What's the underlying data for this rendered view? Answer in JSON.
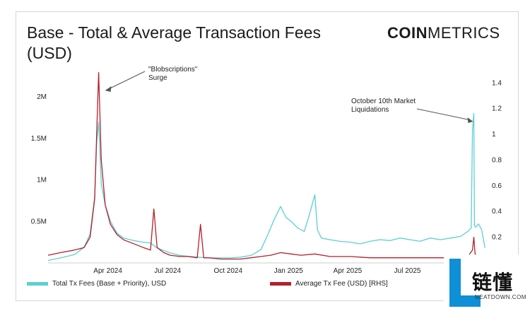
{
  "header": {
    "title": "Base - Total & Average Transaction Fees (USD)",
    "logo_bold": "COIN",
    "logo_light": "METRICS"
  },
  "watermark": {
    "cn_text": "链懂",
    "site": "NEATDOWN.COM"
  },
  "colors": {
    "total_fees": "#5ccfd2",
    "avg_fee": "#b3202c"
  },
  "chart_data": {
    "type": "line",
    "title": "Base - Total & Average Transaction Fees (USD)",
    "x_ticks": [
      "Apr 2024",
      "Jul 2024",
      "Oct 2024",
      "Jan 2025",
      "Apr 2025",
      "Jul 2025"
    ],
    "x_tick_dates": [
      "2024-04-01",
      "2024-07-01",
      "2024-10-01",
      "2025-01-01",
      "2025-04-01",
      "2025-07-01"
    ],
    "x_range": [
      "2024-01-01",
      "2025-10-31"
    ],
    "y_left": {
      "ticks": [
        "0.5M",
        "1M",
        "1.5M",
        "2M"
      ],
      "tick_values": [
        500000,
        1000000,
        1500000,
        2000000
      ],
      "range": [
        0,
        2400000
      ]
    },
    "y_right": {
      "ticks": [
        "0.2",
        "0.4",
        "0.6",
        "0.8",
        "1",
        "1.2",
        "1.4"
      ],
      "tick_values": [
        0.2,
        0.4,
        0.6,
        0.8,
        1.0,
        1.2,
        1.4
      ],
      "range": [
        0,
        1.55
      ]
    },
    "grid": false,
    "legend_position": "bottom",
    "series": [
      {
        "name": "Total Tx Fees (Base + Priority), USD",
        "axis": "left",
        "x": [
          "2024-01-01",
          "2024-01-20",
          "2024-02-10",
          "2024-02-25",
          "2024-03-05",
          "2024-03-12",
          "2024-03-15",
          "2024-03-18",
          "2024-03-22",
          "2024-03-28",
          "2024-04-05",
          "2024-04-15",
          "2024-04-25",
          "2024-05-10",
          "2024-05-25",
          "2024-06-05",
          "2024-06-15",
          "2024-06-25",
          "2024-07-05",
          "2024-07-20",
          "2024-08-01",
          "2024-08-15",
          "2024-09-01",
          "2024-09-20",
          "2024-10-05",
          "2024-10-20",
          "2024-11-05",
          "2024-11-20",
          "2024-12-01",
          "2024-12-10",
          "2024-12-20",
          "2024-12-28",
          "2025-01-05",
          "2025-01-15",
          "2025-01-25",
          "2025-02-01",
          "2025-02-10",
          "2025-02-14",
          "2025-02-20",
          "2025-03-05",
          "2025-03-20",
          "2025-04-05",
          "2025-04-20",
          "2025-05-05",
          "2025-05-20",
          "2025-06-05",
          "2025-06-20",
          "2025-07-05",
          "2025-07-20",
          "2025-08-05",
          "2025-08-20",
          "2025-09-05",
          "2025-09-20",
          "2025-10-01",
          "2025-10-06",
          "2025-10-08",
          "2025-10-10",
          "2025-10-11",
          "2025-10-13",
          "2025-10-17",
          "2025-10-22",
          "2025-10-27"
        ],
        "y": [
          30000,
          60000,
          100000,
          190000,
          350000,
          800000,
          1450000,
          1700000,
          950000,
          700000,
          500000,
          360000,
          300000,
          270000,
          250000,
          240000,
          180000,
          150000,
          120000,
          90000,
          80000,
          70000,
          60000,
          60000,
          60000,
          70000,
          90000,
          160000,
          350000,
          520000,
          680000,
          550000,
          500000,
          420000,
          380000,
          560000,
          820000,
          400000,
          300000,
          280000,
          260000,
          250000,
          230000,
          260000,
          280000,
          270000,
          300000,
          280000,
          260000,
          300000,
          280000,
          300000,
          320000,
          380000,
          420000,
          1600000,
          1800000,
          450000,
          430000,
          470000,
          400000,
          180000
        ]
      },
      {
        "name": "Average Tx Fee (USD) [RHS]",
        "axis": "right",
        "x": [
          "2024-01-01",
          "2024-01-20",
          "2024-02-10",
          "2024-02-25",
          "2024-03-05",
          "2024-03-12",
          "2024-03-15",
          "2024-03-18",
          "2024-03-22",
          "2024-03-28",
          "2024-04-05",
          "2024-04-15",
          "2024-04-25",
          "2024-05-10",
          "2024-05-25",
          "2024-06-05",
          "2024-06-10",
          "2024-06-15",
          "2024-06-25",
          "2024-07-05",
          "2024-07-20",
          "2024-08-01",
          "2024-08-15",
          "2024-08-20",
          "2024-08-25",
          "2024-09-01",
          "2024-09-20",
          "2024-10-05",
          "2024-10-20",
          "2024-11-05",
          "2024-11-20",
          "2024-12-05",
          "2024-12-20",
          "2025-01-05",
          "2025-01-20",
          "2025-02-10",
          "2025-03-05",
          "2025-04-05",
          "2025-05-05",
          "2025-06-05",
          "2025-07-05",
          "2025-08-05",
          "2025-09-05",
          "2025-10-01",
          "2025-10-08",
          "2025-10-10",
          "2025-10-12",
          "2025-10-20",
          "2025-10-27"
        ],
        "y": [
          0.06,
          0.08,
          0.1,
          0.12,
          0.2,
          0.5,
          1.0,
          1.48,
          0.8,
          0.45,
          0.3,
          0.22,
          0.18,
          0.15,
          0.12,
          0.1,
          0.42,
          0.12,
          0.08,
          0.06,
          0.05,
          0.05,
          0.04,
          0.3,
          0.04,
          0.04,
          0.03,
          0.03,
          0.03,
          0.04,
          0.05,
          0.06,
          0.08,
          0.07,
          0.06,
          0.07,
          0.05,
          0.05,
          0.04,
          0.04,
          0.04,
          0.04,
          0.04,
          0.05,
          0.1,
          0.2,
          0.07,
          0.04,
          0.03
        ]
      }
    ],
    "annotations": [
      {
        "text_lines": [
          "\"Blobscriptions\"",
          "Surge"
        ],
        "x": "2024-03-18"
      },
      {
        "text_lines": [
          "October 10th Market",
          "Liquidations"
        ],
        "x": "2025-10-10"
      }
    ]
  }
}
